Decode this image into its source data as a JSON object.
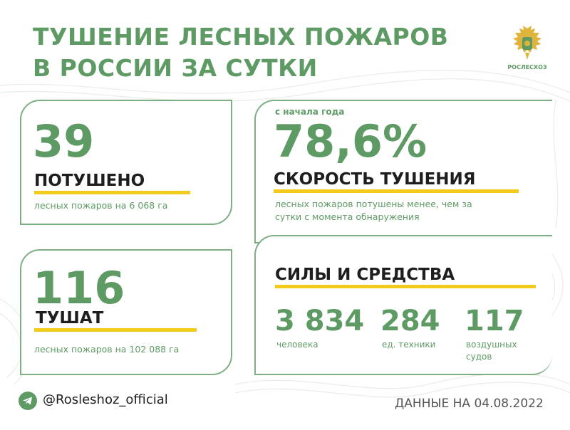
{
  "title_line1": "ТУШЕНИЕ ЛЕСНЫХ ПОЖАРОВ",
  "title_line2": "В РОССИИ ЗА СУТКИ",
  "logo_text": "РОСЛЕСХОЗ",
  "extinguished": {
    "value": "39",
    "label": "ПОТУШЕНО",
    "note": "лесных пожаров на 6 068 га"
  },
  "burning": {
    "value": "116",
    "label": "ТУШАТ",
    "note": "лесных пожаров на 102 088 га"
  },
  "speed": {
    "caption": "с начала года",
    "value": "78,6%",
    "label": "СКОРОСТЬ ТУШЕНИЯ",
    "note_line1": "лесных пожаров потушены менее, чем за",
    "note_line2": "сутки с момента обнаружения"
  },
  "forces": {
    "label": "СИЛЫ И СРЕДСТВА",
    "items": [
      {
        "value": "3 834",
        "label_line1": "человека",
        "label_line2": ""
      },
      {
        "value": "284",
        "label_line1": "ед. техники",
        "label_line2": ""
      },
      {
        "value": "117",
        "label_line1": "воздушных",
        "label_line2": "судов"
      }
    ]
  },
  "footer": {
    "handle": "@Rosleshoz_official",
    "date": "ДАННЫЕ НА 04.08.2022"
  },
  "colors": {
    "green": "#5e9a64",
    "yellow": "#f2cb1d",
    "dark": "#1e1e1e"
  }
}
